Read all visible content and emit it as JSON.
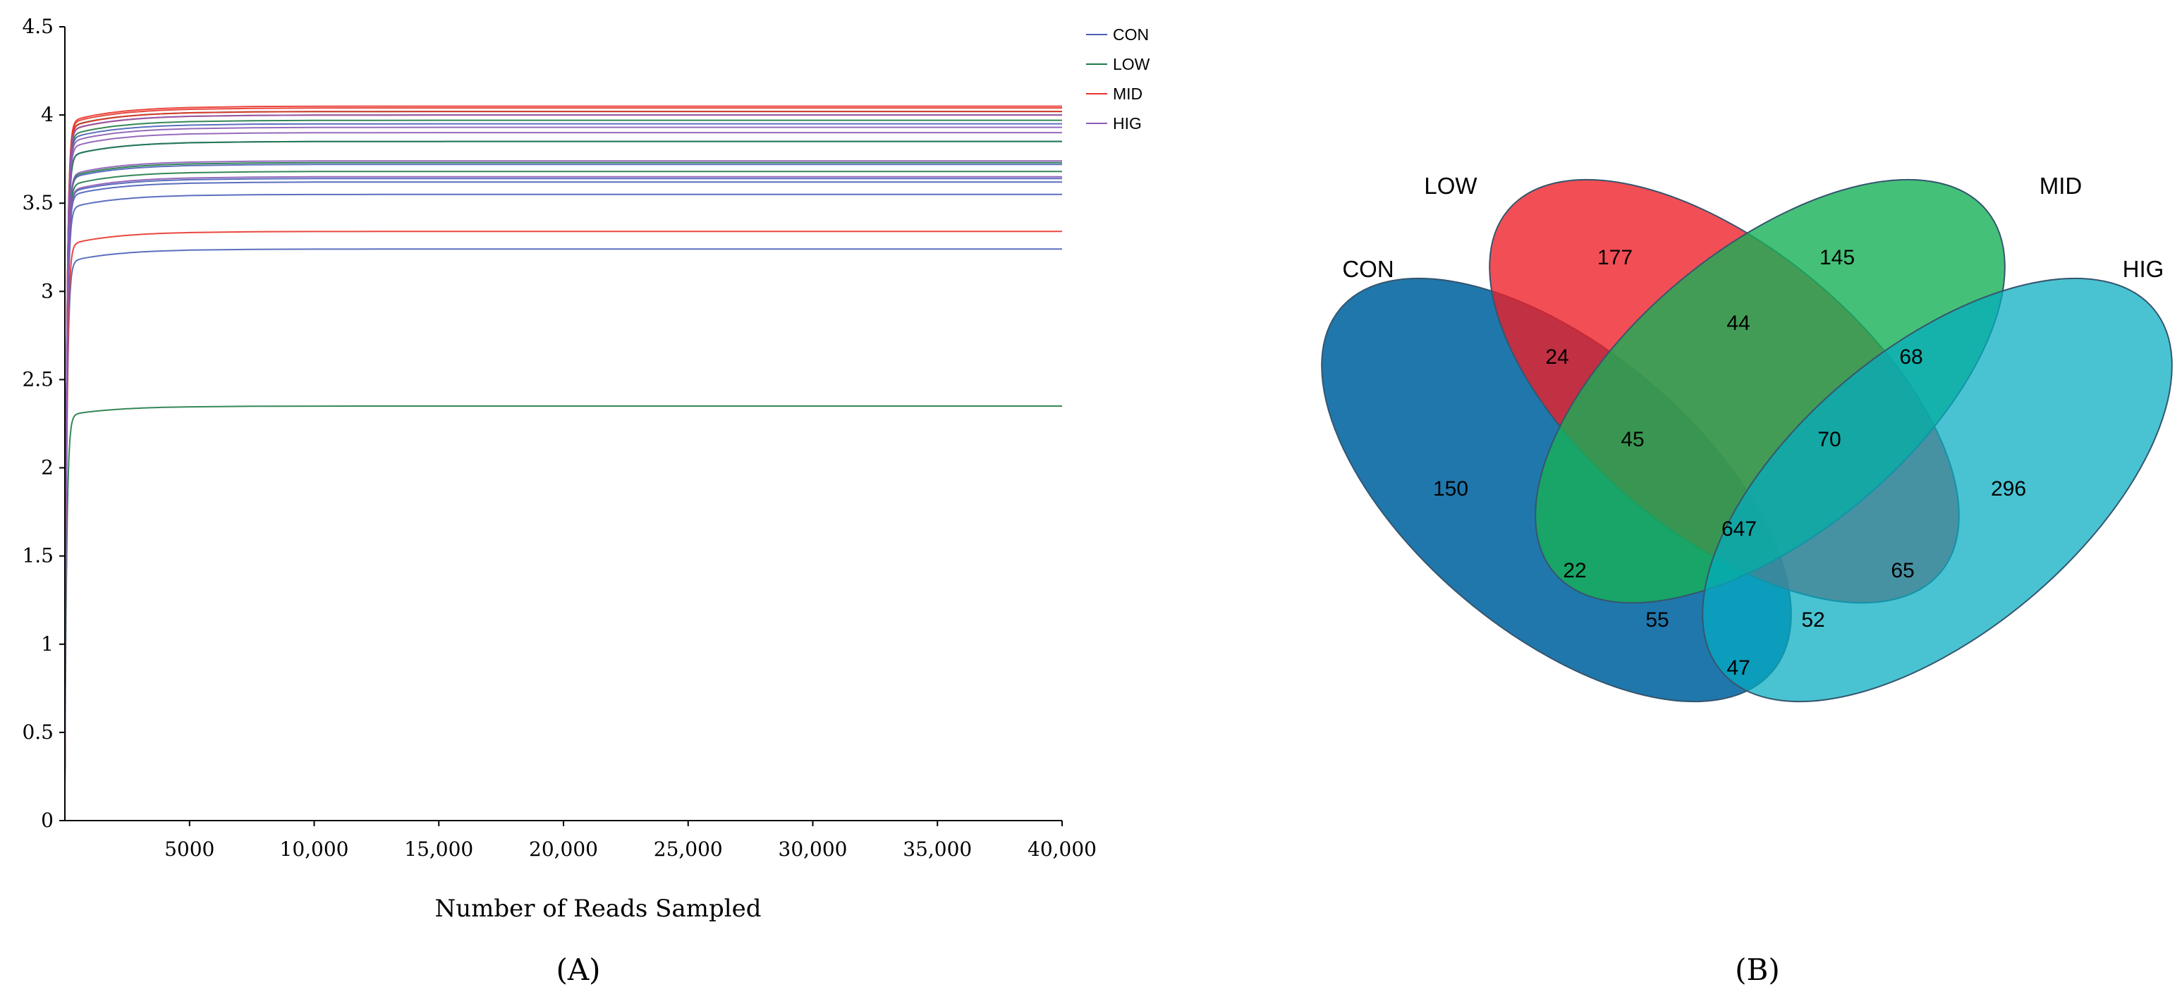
{
  "colors": {
    "CON": "#4a5fb8",
    "LOW": "#1e7a46",
    "MID": "#e8332a",
    "HIG": "#8a5bb5"
  },
  "chart_data": [
    {
      "type": "line",
      "panel_label": "(A)",
      "xlabel": "Number of Reads Sampled",
      "ylabel": "",
      "xlim": [
        0,
        40000
      ],
      "ylim": [
        0,
        4.5
      ],
      "x_ticks": [
        5000,
        10000,
        15000,
        20000,
        25000,
        30000,
        35000,
        40000
      ],
      "x_tick_labels": [
        "5000",
        "10,000",
        "15,000",
        "20,000",
        "25,000",
        "30,000",
        "35,000",
        "40,000"
      ],
      "y_ticks": [
        0,
        0.5,
        1,
        1.5,
        2,
        2.5,
        3,
        3.5,
        4,
        4.5
      ],
      "y_tick_labels": [
        "0",
        "0.5",
        "1",
        "1.5",
        "2",
        "2.5",
        "3",
        "3.5",
        "4",
        "4.5"
      ],
      "legend": [
        "CON",
        "LOW",
        "MID",
        "HIG"
      ],
      "legend_position": "top-right",
      "grid": false,
      "series": [
        {
          "name": "CON",
          "plateaus": [
            3.24,
            3.55,
            3.62,
            3.64,
            3.72,
            3.85,
            3.95
          ]
        },
        {
          "name": "LOW",
          "plateaus": [
            2.35,
            3.68,
            3.73,
            3.85,
            3.97,
            4.02
          ]
        },
        {
          "name": "MID",
          "plateaus": [
            3.34,
            4.0,
            4.02,
            4.04,
            4.05
          ]
        },
        {
          "name": "HIG",
          "plateaus": [
            3.65,
            3.74,
            3.9,
            3.93,
            4.0
          ]
        }
      ]
    },
    {
      "type": "venn",
      "panel_label": "(B)",
      "sets": [
        "CON",
        "LOW",
        "MID",
        "HIG"
      ],
      "regions": [
        {
          "sets": [
            "LOW"
          ],
          "value": 177
        },
        {
          "sets": [
            "MID"
          ],
          "value": 145
        },
        {
          "sets": [
            "CON"
          ],
          "value": 150
        },
        {
          "sets": [
            "HIG"
          ],
          "value": 296
        },
        {
          "sets": [
            "LOW",
            "MID"
          ],
          "value": 44
        },
        {
          "sets": [
            "CON",
            "LOW"
          ],
          "value": 24
        },
        {
          "sets": [
            "MID",
            "HIG"
          ],
          "value": 68
        },
        {
          "sets": [
            "CON",
            "LOW",
            "MID"
          ],
          "value": 45
        },
        {
          "sets": [
            "LOW",
            "MID",
            "HIG"
          ],
          "value": 70
        },
        {
          "sets": [
            "CON",
            "LOW",
            "MID",
            "HIG"
          ],
          "value": 647
        },
        {
          "sets": [
            "CON",
            "MID"
          ],
          "value": 22
        },
        {
          "sets": [
            "LOW",
            "HIG"
          ],
          "value": 65
        },
        {
          "sets": [
            "CON",
            "MID",
            "HIG"
          ],
          "value": 55
        },
        {
          "sets": [
            "CON",
            "LOW",
            "HIG"
          ],
          "value": 52
        },
        {
          "sets": [
            "CON",
            "HIG"
          ],
          "value": 47
        }
      ]
    }
  ]
}
